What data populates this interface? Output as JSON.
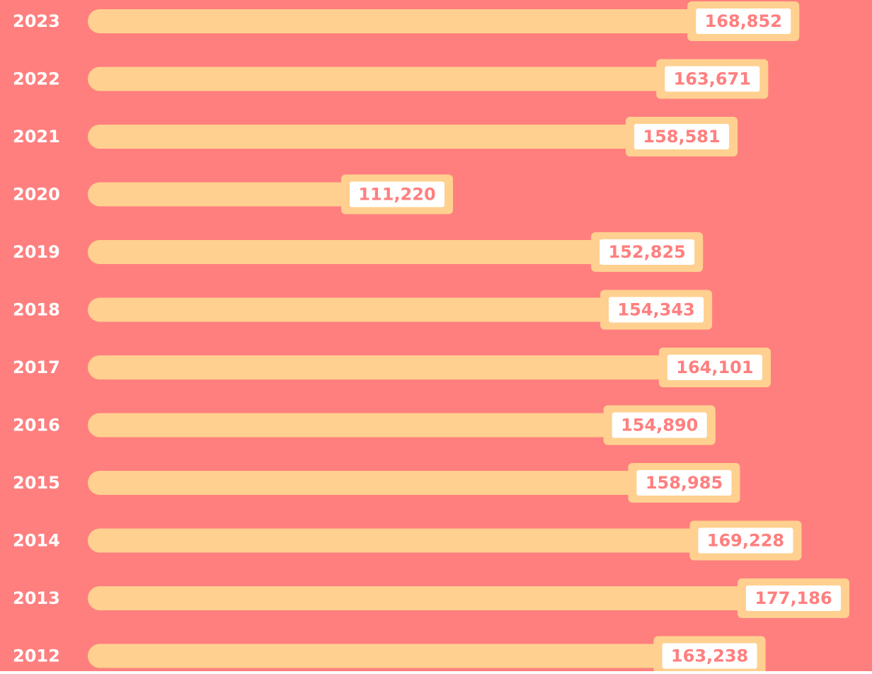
{
  "chart_data": {
    "type": "bar",
    "orientation": "horizontal",
    "categories": [
      "2023",
      "2022",
      "2021",
      "2020",
      "2019",
      "2018",
      "2017",
      "2016",
      "2015",
      "2014",
      "2013",
      "2012"
    ],
    "values": [
      168852,
      163671,
      158581,
      111220,
      152825,
      154343,
      164101,
      154890,
      158985,
      169228,
      177186,
      163238
    ],
    "value_labels": [
      "168,852",
      "163,671",
      "158,581",
      "111,220",
      "152,825",
      "154,343",
      "164,101",
      "154,890",
      "158,985",
      "169,228",
      "177,186",
      "163,238"
    ],
    "color": "#ffd08f",
    "background": "#ff7f7f",
    "label_color": "#ff7f7f"
  }
}
